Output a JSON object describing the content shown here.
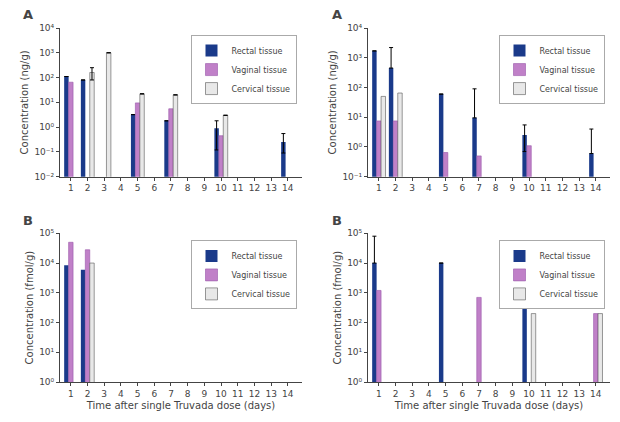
{
  "chart_data": [
    {
      "type": "bar",
      "title": "A",
      "ylabel": "Concentration (ng/g)",
      "x": [
        1,
        2,
        3,
        4,
        5,
        6,
        7,
        8,
        9,
        10,
        11,
        12,
        13,
        14
      ],
      "series": [
        {
          "name": "Rectal tissue",
          "color": "#1a3a8a",
          "values": [
            110,
            80,
            null,
            null,
            3.2,
            null,
            1.8,
            null,
            null,
            0.9,
            null,
            null,
            null,
            0.25
          ],
          "error_low": [
            null,
            null,
            null,
            null,
            null,
            null,
            null,
            null,
            null,
            0.12,
            null,
            null,
            null,
            0.09
          ],
          "error_high": [
            null,
            null,
            null,
            null,
            null,
            null,
            null,
            null,
            null,
            1.8,
            null,
            null,
            null,
            0.55
          ]
        },
        {
          "name": "Vaginal tissue",
          "color": "#c080c8",
          "values": [
            65,
            null,
            null,
            null,
            9.5,
            null,
            5.5,
            null,
            null,
            0.45,
            null,
            null,
            null,
            null
          ]
        },
        {
          "name": "Cervical tissue",
          "color": "#e8e8e8",
          "values": [
            null,
            160,
            1000,
            null,
            22,
            null,
            20,
            null,
            null,
            3.0,
            null,
            null,
            null,
            null
          ],
          "error_low": [
            null,
            80,
            null,
            null,
            null,
            null,
            null,
            null,
            null,
            null,
            null,
            null,
            null,
            null
          ],
          "error_high": [
            null,
            250,
            null,
            null,
            null,
            null,
            null,
            null,
            null,
            null,
            null,
            null,
            null,
            null
          ]
        }
      ],
      "xlim": [
        0.35,
        14.85
      ],
      "xticks": [
        1,
        2,
        3,
        4,
        5,
        6,
        7,
        8,
        9,
        10,
        11,
        12,
        13,
        14
      ],
      "ylim": [
        0.01,
        10000
      ],
      "yticks": [
        {
          "value": 0.01,
          "label": "10⁻²"
        },
        {
          "value": 0.1,
          "label": "10⁻¹"
        },
        {
          "value": 1,
          "label": "10⁰"
        },
        {
          "value": 10,
          "label": "10¹"
        },
        {
          "value": 100,
          "label": "10²"
        },
        {
          "value": 1000,
          "label": "10³"
        },
        {
          "value": 10000,
          "label": "10⁴"
        }
      ],
      "log": "y",
      "grid": false,
      "legend": "upper right"
    },
    {
      "type": "bar",
      "title": "A",
      "ylabel": "Concentration (ng/g)",
      "x": [
        1,
        2,
        3,
        4,
        5,
        6,
        7,
        8,
        9,
        10,
        11,
        12,
        13,
        14
      ],
      "series": [
        {
          "name": "Rectal tissue",
          "color": "#1a3a8a",
          "values": [
            1700,
            450,
            null,
            null,
            60,
            null,
            9.5,
            null,
            null,
            2.5,
            null,
            null,
            null,
            0.6
          ],
          "error_low": [
            null,
            null,
            null,
            null,
            null,
            null,
            null,
            null,
            null,
            0.7,
            null,
            null,
            null,
            null
          ],
          "error_high": [
            null,
            2200,
            null,
            null,
            null,
            null,
            90,
            null,
            null,
            5.5,
            null,
            null,
            null,
            4.0
          ]
        },
        {
          "name": "Vaginal tissue",
          "color": "#c080c8",
          "values": [
            7.5,
            7.5,
            null,
            null,
            0.65,
            null,
            0.5,
            null,
            null,
            1.1,
            null,
            null,
            null,
            null
          ]
        },
        {
          "name": "Cervical tissue",
          "color": "#e8e8e8",
          "values": [
            50,
            65,
            null,
            null,
            null,
            null,
            null,
            null,
            null,
            null,
            null,
            null,
            null,
            null
          ]
        }
      ],
      "xlim": [
        0.35,
        14.85
      ],
      "xticks": [
        1,
        2,
        3,
        4,
        5,
        6,
        7,
        8,
        9,
        10,
        11,
        12,
        13,
        14
      ],
      "ylim": [
        0.1,
        10000
      ],
      "yticks": [
        {
          "value": 0.1,
          "label": "10⁻¹"
        },
        {
          "value": 1,
          "label": "10⁰"
        },
        {
          "value": 10,
          "label": "10¹"
        },
        {
          "value": 100,
          "label": "10²"
        },
        {
          "value": 1000,
          "label": "10³"
        },
        {
          "value": 10000,
          "label": "10⁴"
        }
      ],
      "log": "y",
      "grid": false,
      "legend": "upper right"
    },
    {
      "type": "bar",
      "title": "B",
      "ylabel": "Concentration (fmol/g)",
      "xlabel": "Time after single Truvada dose (days)",
      "x": [
        1,
        2,
        3,
        4,
        5,
        6,
        7,
        8,
        9,
        10,
        11,
        12,
        13,
        14
      ],
      "series": [
        {
          "name": "Rectal tissue",
          "color": "#1a3a8a",
          "values": [
            8500,
            6000,
            null,
            null,
            null,
            null,
            null,
            null,
            null,
            null,
            null,
            null,
            null,
            null
          ]
        },
        {
          "name": "Vaginal tissue",
          "color": "#c080c8",
          "values": [
            50000,
            28000,
            null,
            null,
            null,
            null,
            null,
            null,
            null,
            null,
            null,
            null,
            null,
            null
          ]
        },
        {
          "name": "Cervical tissue",
          "color": "#e8e8e8",
          "values": [
            null,
            10000,
            null,
            null,
            null,
            null,
            null,
            null,
            null,
            null,
            null,
            null,
            null,
            null
          ]
        }
      ],
      "xlim": [
        0.35,
        14.85
      ],
      "xticks": [
        1,
        2,
        3,
        4,
        5,
        6,
        7,
        8,
        9,
        10,
        11,
        12,
        13,
        14
      ],
      "ylim": [
        1,
        100000
      ],
      "yticks": [
        {
          "value": 1,
          "label": "10⁰"
        },
        {
          "value": 10,
          "label": "10¹"
        },
        {
          "value": 100,
          "label": "10²"
        },
        {
          "value": 1000,
          "label": "10³"
        },
        {
          "value": 10000,
          "label": "10⁴"
        },
        {
          "value": 100000,
          "label": "10⁵"
        }
      ],
      "log": "y",
      "grid": false,
      "legend": "upper right"
    },
    {
      "type": "bar",
      "title": "B",
      "ylabel": "Concentration (fmol/g)",
      "xlabel": "Time after single Truvada dose (days)",
      "x": [
        1,
        2,
        3,
        4,
        5,
        6,
        7,
        8,
        9,
        10,
        11,
        12,
        13,
        14
      ],
      "series": [
        {
          "name": "Rectal tissue",
          "color": "#1a3a8a",
          "values": [
            10000,
            null,
            null,
            null,
            10000,
            null,
            null,
            null,
            null,
            350,
            null,
            null,
            null,
            null
          ],
          "error_high": [
            80000,
            null,
            null,
            null,
            null,
            null,
            null,
            null,
            null,
            null,
            null,
            null,
            null,
            null
          ]
        },
        {
          "name": "Vaginal tissue",
          "color": "#c080c8",
          "values": [
            1200,
            null,
            null,
            null,
            null,
            null,
            700,
            null,
            null,
            null,
            null,
            null,
            null,
            200
          ]
        },
        {
          "name": "Cervical tissue",
          "color": "#e8e8e8",
          "values": [
            null,
            null,
            null,
            null,
            null,
            null,
            null,
            null,
            null,
            200,
            null,
            null,
            null,
            200
          ]
        }
      ],
      "xlim": [
        0.35,
        14.85
      ],
      "xticks": [
        1,
        2,
        3,
        4,
        5,
        6,
        7,
        8,
        9,
        10,
        11,
        12,
        13,
        14
      ],
      "ylim": [
        1,
        100000
      ],
      "yticks": [
        {
          "value": 1,
          "label": "10⁰"
        },
        {
          "value": 10,
          "label": "10¹"
        },
        {
          "value": 100,
          "label": "10²"
        },
        {
          "value": 1000,
          "label": "10³"
        },
        {
          "value": 10000,
          "label": "10⁴"
        },
        {
          "value": 100000,
          "label": "10⁵"
        }
      ],
      "log": "y",
      "grid": false,
      "legend": "upper right"
    }
  ]
}
